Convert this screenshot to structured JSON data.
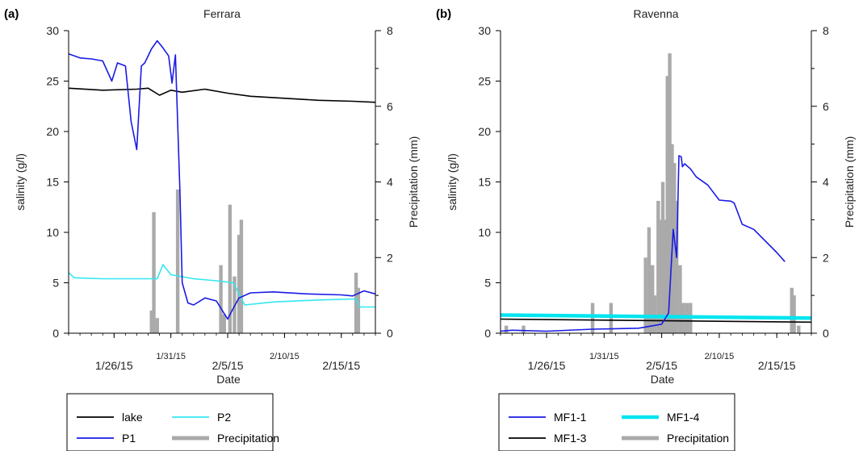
{
  "chart_data": [
    {
      "type": "line",
      "panel_label": "(a)",
      "title": "Ferrara",
      "xlabel": "Date",
      "ylabel": "salinity (g/l)",
      "y2label": "Precipitation (mm)",
      "x_type": "date",
      "xlim": [
        "2015-01-22",
        "2015-02-18"
      ],
      "ylim": [
        0,
        30
      ],
      "y2lim": [
        0,
        8
      ],
      "x_ticks": [
        {
          "date": "2015-01-26",
          "label": "1/26/15",
          "row": "low"
        },
        {
          "date": "2015-01-31",
          "label": "1/31/15",
          "row": "high"
        },
        {
          "date": "2015-02-05",
          "label": "2/5/15",
          "row": "low"
        },
        {
          "date": "2015-02-10",
          "label": "2/10/15",
          "row": "high"
        },
        {
          "date": "2015-02-15",
          "label": "2/15/15",
          "row": "low"
        }
      ],
      "y_ticks": [
        "0",
        "5",
        "10",
        "15",
        "20",
        "25",
        "30"
      ],
      "y2_ticks": [
        "0",
        "2",
        "4",
        "6",
        "8"
      ],
      "legend": {
        "placement": "bottom",
        "items": [
          "lake",
          "P2",
          "P1",
          "Precipitation"
        ]
      },
      "series": [
        {
          "name": "lake",
          "axis": "left",
          "color": "#000000",
          "x": [
            "2015-01-22",
            "2015-01-25",
            "2015-01-28",
            "2015-01-29",
            "2015-01-30",
            "2015-01-31",
            "2015-02-01",
            "2015-02-03",
            "2015-02-05",
            "2015-02-07",
            "2015-02-10",
            "2015-02-13",
            "2015-02-16",
            "2015-02-18"
          ],
          "y": [
            24.3,
            24.1,
            24.2,
            24.3,
            23.6,
            24.1,
            23.9,
            24.2,
            23.8,
            23.5,
            23.3,
            23.1,
            23.0,
            22.9
          ]
        },
        {
          "name": "P2",
          "axis": "left",
          "color": "#33e6f0",
          "x": [
            "2015-01-22",
            "2015-01-22.5",
            "2015-01-25",
            "2015-01-29.8",
            "2015-01-30.3",
            "2015-01-31",
            "2015-02-02",
            "2015-02-04",
            "2015-02-05.5",
            "2015-02-06.5",
            "2015-02-09",
            "2015-02-13",
            "2015-02-16.3",
            "2015-02-16.6",
            "2015-02-18"
          ],
          "y": [
            6.0,
            5.5,
            5.4,
            5.4,
            6.8,
            5.8,
            5.4,
            5.2,
            5.0,
            2.8,
            3.1,
            3.3,
            3.4,
            2.6,
            2.6
          ]
        },
        {
          "name": "P1",
          "axis": "left",
          "color": "#1a1ae6",
          "x": [
            "2015-01-22",
            "2015-01-23",
            "2015-01-24",
            "2015-01-25",
            "2015-01-25.8",
            "2015-01-26.3",
            "2015-01-27",
            "2015-01-27.5",
            "2015-01-28",
            "2015-01-28.4",
            "2015-01-28.7",
            "2015-01-29.3",
            "2015-01-29.8",
            "2015-01-30.3",
            "2015-01-30.8",
            "2015-01-31.1",
            "2015-01-31.4",
            "2015-01-31.8",
            "2015-02-01",
            "2015-02-01.5",
            "2015-02-02",
            "2015-02-03",
            "2015-02-04",
            "2015-02-05",
            "2015-02-05.5",
            "2015-02-06",
            "2015-02-07",
            "2015-02-09",
            "2015-02-12",
            "2015-02-15",
            "2015-02-16",
            "2015-02-17",
            "2015-02-18"
          ],
          "y": [
            27.7,
            27.3,
            27.2,
            27.0,
            25.0,
            26.8,
            26.5,
            21.0,
            18.2,
            26.5,
            26.8,
            28.2,
            29.0,
            28.3,
            27.5,
            24.8,
            27.6,
            14.0,
            5.0,
            3.0,
            2.8,
            3.5,
            3.2,
            1.4,
            2.5,
            3.5,
            4.0,
            4.1,
            3.9,
            3.8,
            3.7,
            4.2,
            3.9
          ]
        },
        {
          "name": "Precipitation",
          "axis": "right",
          "type": "bar",
          "color": "#aaaaaa",
          "x": [
            "2015-01-29.3",
            "2015-01-29.5",
            "2015-01-29.8",
            "2015-01-31.6",
            "2015-02-04.4",
            "2015-02-04.7",
            "2015-02-05.2",
            "2015-02-05.6",
            "2015-02-06.0",
            "2015-02-06.2",
            "2015-02-16.3",
            "2015-02-16.5"
          ],
          "y": [
            0.6,
            3.2,
            0.4,
            3.8,
            1.8,
            0.5,
            3.4,
            1.5,
            2.6,
            3.0,
            1.6,
            1.2
          ]
        }
      ]
    },
    {
      "type": "line",
      "panel_label": "(b)",
      "title": "Ravenna",
      "xlabel": "Date",
      "ylabel": "salinity (g/l)",
      "y2label": "Precipitation (mm)",
      "x_type": "date",
      "xlim": [
        "2015-01-22",
        "2015-02-18"
      ],
      "ylim": [
        0,
        30
      ],
      "y2lim": [
        0,
        8
      ],
      "x_ticks": [
        {
          "date": "2015-01-26",
          "label": "1/26/15",
          "row": "low"
        },
        {
          "date": "2015-01-31",
          "label": "1/31/15",
          "row": "high"
        },
        {
          "date": "2015-02-05",
          "label": "2/5/15",
          "row": "low"
        },
        {
          "date": "2015-02-10",
          "label": "2/10/15",
          "row": "high"
        },
        {
          "date": "2015-02-15",
          "label": "2/15/15",
          "row": "low"
        }
      ],
      "y_ticks": [
        "0",
        "5",
        "10",
        "15",
        "20",
        "25",
        "30"
      ],
      "y2_ticks": [
        "0",
        "2",
        "4",
        "6",
        "8"
      ],
      "legend": {
        "placement": "bottom",
        "items": [
          "MF1-1",
          "MF1-4",
          "MF1-3",
          "Precipitation"
        ]
      },
      "series": [
        {
          "name": "MF1-4",
          "axis": "left",
          "color": "#00e5f0",
          "x": [
            "2015-01-22",
            "2015-02-18"
          ],
          "y": [
            1.8,
            1.5
          ]
        },
        {
          "name": "MF1-3",
          "axis": "left",
          "color": "#000000",
          "x": [
            "2015-01-22",
            "2015-02-18"
          ],
          "y": [
            1.4,
            1.1
          ]
        },
        {
          "name": "MF1-1",
          "axis": "left",
          "color": "#1a1ae6",
          "x": [
            "2015-01-22",
            "2015-01-23",
            "2015-01-26",
            "2015-01-30",
            "2015-02-03",
            "2015-02-05",
            "2015-02-05.6",
            "2015-02-06",
            "2015-02-06.3",
            "2015-02-06.5",
            "2015-02-06.7",
            "2015-02-06.8",
            "2015-02-07",
            "2015-02-07.5",
            "2015-02-08",
            "2015-02-09",
            "2015-02-10",
            "2015-02-11",
            "2015-02-11.3",
            "2015-02-12",
            "2015-02-13",
            "2015-02-15",
            "2015-02-15.7"
          ],
          "y": [
            0.2,
            0.3,
            0.2,
            0.4,
            0.5,
            0.9,
            2.0,
            10.3,
            7.5,
            17.6,
            17.5,
            16.5,
            16.8,
            16.3,
            15.5,
            14.7,
            13.2,
            13.1,
            12.9,
            10.8,
            10.3,
            8.0,
            7.1
          ]
        },
        {
          "name": "Precipitation",
          "axis": "right",
          "type": "bar",
          "color": "#aaaaaa",
          "x": [
            "2015-01-22.5",
            "2015-01-24",
            "2015-01-30",
            "2015-01-31.6",
            "2015-02-03.6",
            "2015-02-03.9",
            "2015-02-04.2",
            "2015-02-04.4",
            "2015-02-04.7",
            "2015-02-04.9",
            "2015-02-05.1",
            "2015-02-05.3",
            "2015-02-05.5",
            "2015-02-05.7",
            "2015-02-05.9",
            "2015-02-06.1",
            "2015-02-06.3",
            "2015-02-06.6",
            "2015-02-06.9",
            "2015-02-07.2",
            "2015-02-07.5",
            "2015-02-16.3",
            "2015-02-16.5",
            "2015-02-16.9"
          ],
          "y": [
            0.2,
            0.2,
            0.8,
            0.8,
            2.0,
            2.8,
            1.8,
            1.0,
            3.5,
            3.0,
            4.0,
            3.0,
            6.8,
            7.4,
            5.0,
            4.5,
            3.5,
            1.8,
            0.8,
            0.8,
            0.8,
            1.2,
            1.0,
            0.2
          ]
        }
      ]
    }
  ]
}
